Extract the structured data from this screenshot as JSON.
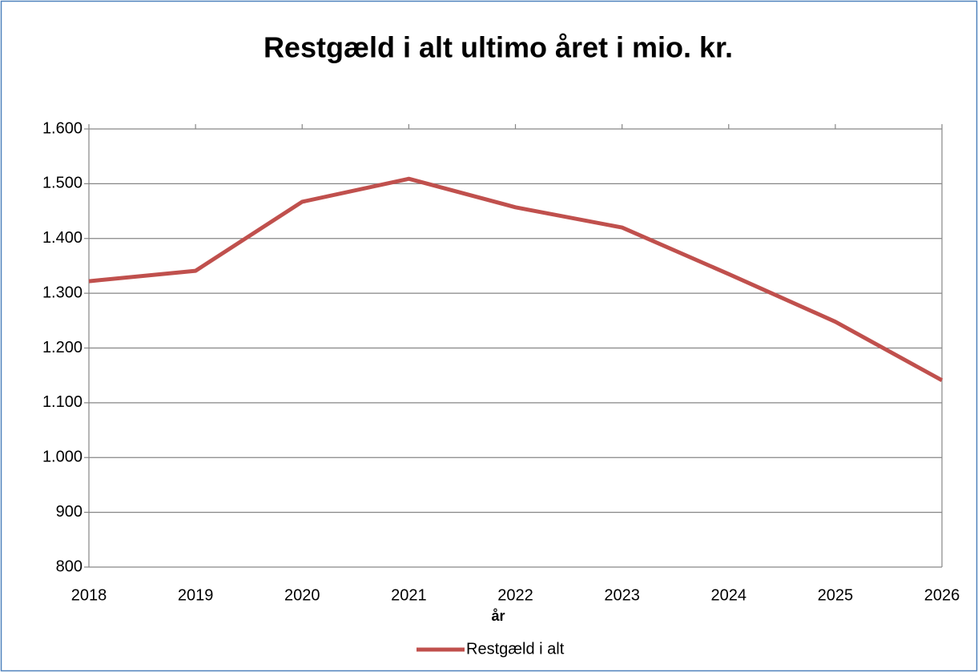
{
  "chart_data": {
    "type": "line",
    "title": "Restgæld i alt ultimo året i mio. kr.",
    "x_label": "år",
    "categories": [
      "2018",
      "2019",
      "2020",
      "2021",
      "2022",
      "2023",
      "2024",
      "2025",
      "2026"
    ],
    "series": [
      {
        "name": "Restgæld i alt",
        "color": "#c0504d",
        "values": [
          1322,
          1341,
          1467,
          1509,
          1457,
          1420,
          1335,
          1248,
          1141
        ]
      }
    ],
    "ylim": [
      800,
      1600
    ],
    "yticks": [
      800,
      900,
      {
        "value": 1000,
        "label": "1.000"
      },
      {
        "value": 1100,
        "label": "1.100"
      },
      {
        "value": 1200,
        "label": "1.200"
      },
      {
        "value": 1300,
        "label": "1.300"
      },
      {
        "value": 1400,
        "label": "1.400"
      },
      {
        "value": 1500,
        "label": "1.500"
      },
      {
        "value": 1600,
        "label": "1.600"
      }
    ],
    "grid": true,
    "legend": "bottom"
  }
}
